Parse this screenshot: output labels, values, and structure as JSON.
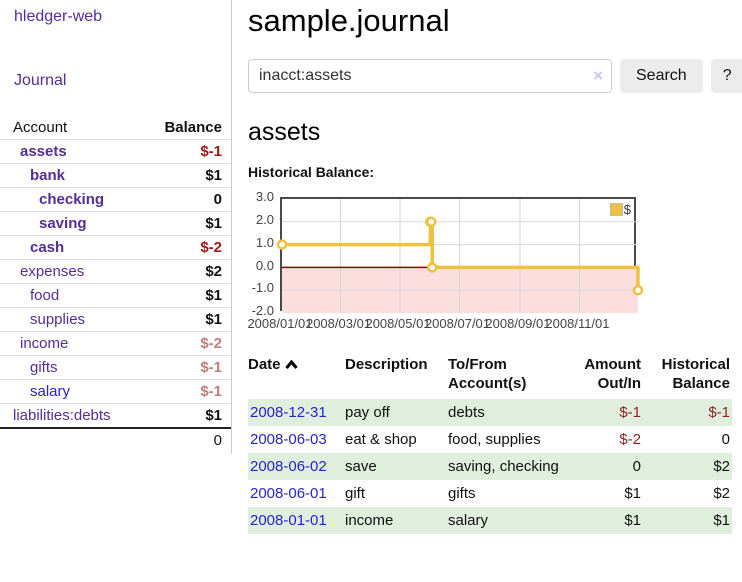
{
  "app": {
    "title": "hledger-web"
  },
  "sidebar": {
    "journal_link": "Journal",
    "headers": {
      "account": "Account",
      "balance": "Balance"
    },
    "accounts": [
      {
        "name": "assets",
        "balance": "$-1"
      },
      {
        "name": "bank",
        "balance": "$1"
      },
      {
        "name": "checking",
        "balance": "0"
      },
      {
        "name": "saving",
        "balance": "$1"
      },
      {
        "name": "cash",
        "balance": "$-2"
      },
      {
        "name": "expenses",
        "balance": "$2"
      },
      {
        "name": "food",
        "balance": "$1"
      },
      {
        "name": "supplies",
        "balance": "$1"
      },
      {
        "name": "income",
        "balance": "$-2"
      },
      {
        "name": "gifts",
        "balance": "$-1"
      },
      {
        "name": "salary",
        "balance": "$-1"
      },
      {
        "name": "liabilities:debts",
        "balance": "$1"
      }
    ],
    "total": "0"
  },
  "main": {
    "title": "sample.journal",
    "search": {
      "value": "inacct:assets",
      "clear_icon": "×",
      "button_label": "Search",
      "help_label": "?"
    },
    "account_heading": "assets",
    "chart_label": "Historical Balance:"
  },
  "chart_data": {
    "type": "line",
    "title": "Historical Balance",
    "step": true,
    "series": [
      {
        "name": "$",
        "points": [
          [
            "2008-01-01",
            1
          ],
          [
            "2008-06-01",
            2
          ],
          [
            "2008-06-02",
            2
          ],
          [
            "2008-06-03",
            0
          ],
          [
            "2008-12-31",
            -1
          ]
        ]
      }
    ],
    "xlim": [
      "2008-01-01",
      "2008-12-31"
    ],
    "ylim": [
      -2,
      3
    ],
    "y_ticks": [
      {
        "v": 3,
        "label": "3.0"
      },
      {
        "v": 2,
        "label": "2.0"
      },
      {
        "v": 1,
        "label": "1.0"
      },
      {
        "v": 0,
        "label": "0.0"
      },
      {
        "v": -1,
        "label": "-1.0"
      },
      {
        "v": -2,
        "label": "-2.0"
      }
    ],
    "x_ticks": [
      {
        "d": "2008-01-01",
        "label": "2008/01/01"
      },
      {
        "d": "2008-03-01",
        "label": "2008/03/01"
      },
      {
        "d": "2008-05-01",
        "label": "2008/05/01"
      },
      {
        "d": "2008-07-01",
        "label": "2008/07/01"
      },
      {
        "d": "2008-09-01",
        "label": "2008/09/01"
      },
      {
        "d": "2008-11-01",
        "label": "2008/11/01"
      }
    ],
    "negative_region_shaded": true,
    "grid": true,
    "legend": {
      "label": "$",
      "position": "top-right"
    }
  },
  "register": {
    "headers": {
      "date": "Date",
      "description": "Description",
      "account": "To/From Account(s)",
      "amount": "Amount Out/In",
      "balance": "Historical Balance"
    },
    "rows": [
      {
        "date": "2008-12-31",
        "description": "pay off",
        "account": "debts",
        "amount": "$-1",
        "balance": "$-1"
      },
      {
        "date": "2008-06-03",
        "description": "eat & shop",
        "account": "food, supplies",
        "amount": "$-2",
        "balance": "0"
      },
      {
        "date": "2008-06-02",
        "description": "save",
        "account": "saving, checking",
        "amount": "0",
        "balance": "$2"
      },
      {
        "date": "2008-06-01",
        "description": "gift",
        "account": "gifts",
        "amount": "$1",
        "balance": "$2"
      },
      {
        "date": "2008-01-01",
        "description": "income",
        "account": "salary",
        "amount": "$1",
        "balance": "$1"
      }
    ]
  },
  "colors": {
    "purple": "#552d9b",
    "blue": "#2424cc",
    "negStrong": "#a31515",
    "negMuted": "#c27d7d",
    "regNeg": "#8f1f1f",
    "green": "#dfeedd",
    "chartLine": "#edc240",
    "chartFill": "#fcdede",
    "chartZero": "#8b0000"
  }
}
